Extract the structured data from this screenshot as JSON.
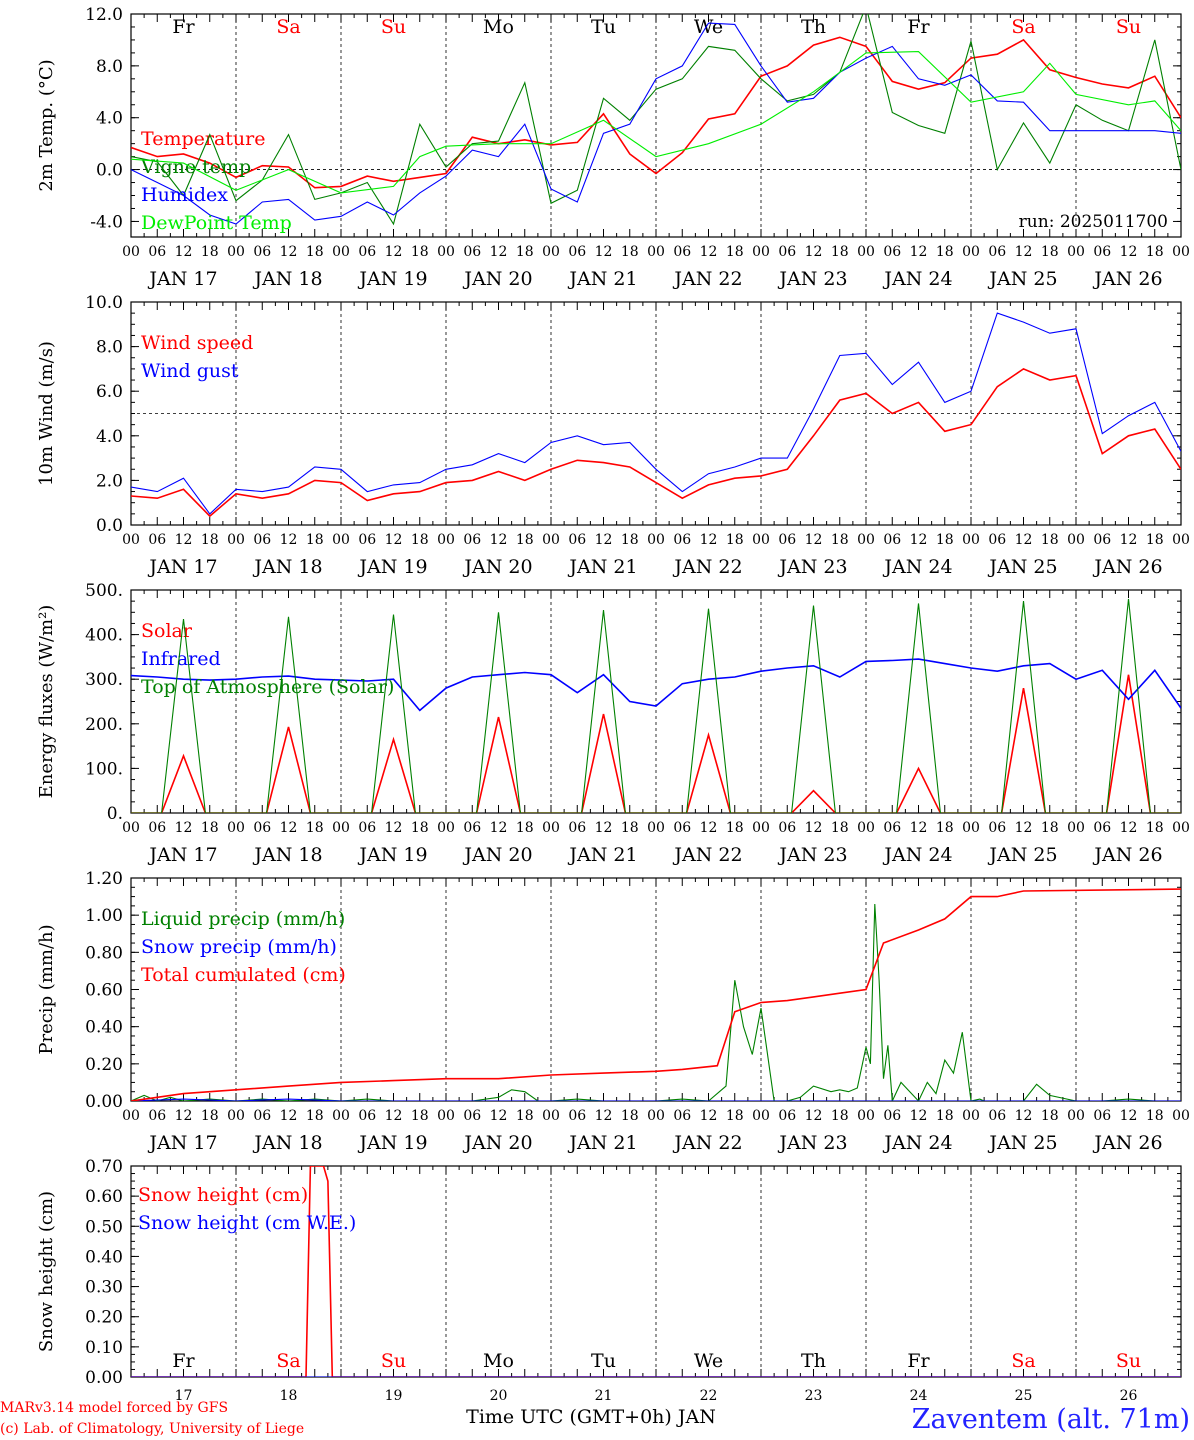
{
  "run_label": "run: 2025011700",
  "footer": {
    "model": "MARv3.14 model forced by GFS",
    "credit": "(c) Lab. of Climatology, University of Liege",
    "xlabel": "Time UTC (GMT+0h) JAN",
    "station": "Zaventem (alt. 71m)"
  },
  "colors": {
    "red": "#ff0000",
    "blue": "#0000ff",
    "green": "#008000",
    "lime": "#00ee00"
  },
  "hour_ticks": [
    "00",
    "06",
    "12",
    "18"
  ],
  "final_tick": "00",
  "day_labels": [
    "JAN 17",
    "JAN 18",
    "JAN 19",
    "JAN 20",
    "JAN 21",
    "JAN 22",
    "JAN 23",
    "JAN 24",
    "JAN 25",
    "JAN 26"
  ],
  "weekday_labels": [
    "Fr",
    "Sa",
    "Su",
    "Mo",
    "Tu",
    "We",
    "Th",
    "Fr",
    "Sa",
    "Su"
  ],
  "weekend_days": [
    1,
    2,
    8,
    9
  ],
  "bottom_day_numbers": [
    "17",
    "18",
    "19",
    "20",
    "21",
    "22",
    "23",
    "24",
    "25",
    "26"
  ],
  "chart_data": [
    {
      "type": "line",
      "ylabel": "2m Temp. (°C)",
      "ylim": [
        -5.2,
        12
      ],
      "yticks": [
        "-4.0",
        "0.0",
        "4.0",
        "8.0",
        "12.0"
      ],
      "ytick_values": [
        -4,
        0,
        4,
        8,
        12
      ],
      "ref_line": 0,
      "x_unit": "hours since JAN 17 00 UTC",
      "xlim": [
        0,
        240
      ],
      "legend_position": "top-left",
      "series": [
        {
          "name": "Temperature",
          "color": "red",
          "x": [
            0,
            6,
            12,
            18,
            24,
            30,
            36,
            42,
            48,
            54,
            60,
            66,
            72,
            78,
            84,
            90,
            96,
            102,
            108,
            114,
            120,
            126,
            132,
            138,
            144,
            150,
            156,
            162,
            168,
            174,
            180,
            186,
            192,
            198,
            204,
            210,
            216,
            222,
            228,
            234,
            240
          ],
          "y": [
            1.7,
            1.0,
            1.2,
            0.5,
            -0.6,
            0.3,
            0.2,
            -1.4,
            -1.3,
            -0.5,
            -0.9,
            -0.6,
            -0.3,
            2.5,
            2.0,
            2.3,
            1.9,
            2.1,
            4.3,
            1.2,
            -0.3,
            1.3,
            3.9,
            4.3,
            7.2,
            8.0,
            9.6,
            10.2,
            9.5,
            6.8,
            6.2,
            6.7,
            8.6,
            8.9,
            10.0,
            7.7,
            7.1,
            6.6,
            6.3,
            7.2,
            4.0
          ]
        },
        {
          "name": "Vigne temp",
          "color": "green",
          "x": [
            0,
            6,
            12,
            18,
            24,
            30,
            36,
            42,
            48,
            54,
            60,
            66,
            72,
            78,
            84,
            90,
            96,
            102,
            108,
            114,
            120,
            126,
            132,
            138,
            144,
            150,
            156,
            162,
            168,
            174,
            180,
            186,
            192,
            198,
            204,
            210,
            216,
            222,
            228,
            234,
            240
          ],
          "y": [
            1.0,
            0.6,
            -2.0,
            2.7,
            -2.4,
            -0.8,
            2.7,
            -2.3,
            -1.8,
            -1.0,
            -4.2,
            3.5,
            0.2,
            2.0,
            2.2,
            6.7,
            -2.6,
            -1.6,
            5.5,
            3.8,
            6.2,
            7.0,
            9.5,
            9.2,
            7.0,
            5.3,
            5.8,
            7.5,
            12.6,
            4.4,
            3.4,
            2.8,
            9.9,
            0.0,
            3.6,
            0.5,
            5.0,
            3.8,
            3.0,
            10.0,
            0.0
          ]
        },
        {
          "name": "Humidex",
          "color": "blue",
          "x": [
            0,
            6,
            12,
            18,
            24,
            30,
            36,
            42,
            48,
            54,
            60,
            66,
            72,
            78,
            84,
            90,
            96,
            102,
            108,
            114,
            120,
            126,
            132,
            138,
            144,
            150,
            156,
            162,
            168,
            174,
            180,
            186,
            192,
            198,
            204,
            210,
            216,
            222,
            228,
            234,
            240
          ],
          "y": [
            0.0,
            -1.0,
            -2.0,
            -3.5,
            -4.2,
            -2.5,
            -2.3,
            -3.9,
            -3.6,
            -2.5,
            -3.5,
            -1.8,
            -0.5,
            1.5,
            1.0,
            3.5,
            -1.5,
            -2.5,
            2.8,
            3.5,
            7.0,
            8.0,
            11.3,
            11.2,
            8.0,
            5.2,
            5.5,
            7.5,
            8.6,
            9.5,
            7.0,
            6.5,
            7.3,
            5.3,
            5.2,
            3.0,
            3.0,
            3.0,
            3.0,
            3.0,
            2.8
          ]
        },
        {
          "name": "DewPoint Temp",
          "color": "lime",
          "x": [
            0,
            12,
            24,
            36,
            48,
            60,
            66,
            72,
            84,
            96,
            108,
            120,
            132,
            144,
            156,
            168,
            180,
            192,
            204,
            210,
            216,
            228,
            234,
            240
          ],
          "y": [
            0.8,
            0.5,
            -1.6,
            0.0,
            -1.8,
            -1.3,
            1.0,
            1.8,
            2.0,
            2.0,
            3.8,
            1.0,
            2.0,
            3.5,
            6.0,
            9.0,
            9.1,
            5.2,
            6.0,
            8.2,
            5.8,
            5.0,
            5.3,
            3.0
          ]
        }
      ]
    },
    {
      "type": "line",
      "ylabel": "10m Wind (m/s)",
      "ylim": [
        0,
        10
      ],
      "yticks": [
        "0.0",
        "2.0",
        "4.0",
        "6.0",
        "8.0",
        "10.0"
      ],
      "ytick_values": [
        0,
        2,
        4,
        6,
        8,
        10
      ],
      "ref_line": 5,
      "x_unit": "hours since JAN 17 00 UTC",
      "xlim": [
        0,
        240
      ],
      "legend_position": "top-left",
      "series": [
        {
          "name": "Wind speed",
          "color": "red",
          "x": [
            0,
            6,
            12,
            18,
            24,
            30,
            36,
            42,
            48,
            54,
            60,
            66,
            72,
            78,
            84,
            90,
            96,
            102,
            108,
            114,
            120,
            126,
            132,
            138,
            144,
            150,
            156,
            162,
            168,
            174,
            180,
            186,
            192,
            198,
            204,
            210,
            216,
            222,
            228,
            234,
            240
          ],
          "y": [
            1.3,
            1.2,
            1.6,
            0.4,
            1.4,
            1.2,
            1.4,
            2.0,
            1.9,
            1.1,
            1.4,
            1.5,
            1.9,
            2.0,
            2.4,
            2.0,
            2.5,
            2.9,
            2.8,
            2.6,
            1.9,
            1.2,
            1.8,
            2.1,
            2.2,
            2.5,
            4.0,
            5.6,
            5.9,
            5.0,
            5.5,
            4.2,
            4.5,
            6.2,
            7.0,
            6.5,
            6.7,
            3.2,
            4.0,
            4.3,
            2.5
          ]
        },
        {
          "name": "Wind gust",
          "color": "blue",
          "x": [
            0,
            6,
            12,
            18,
            24,
            30,
            36,
            42,
            48,
            54,
            60,
            66,
            72,
            78,
            84,
            90,
            96,
            102,
            108,
            114,
            120,
            126,
            132,
            138,
            144,
            150,
            156,
            162,
            168,
            174,
            180,
            186,
            192,
            198,
            204,
            210,
            216,
            222,
            228,
            234,
            240
          ],
          "y": [
            1.7,
            1.5,
            2.1,
            0.5,
            1.6,
            1.5,
            1.7,
            2.6,
            2.5,
            1.5,
            1.8,
            1.9,
            2.5,
            2.7,
            3.2,
            2.8,
            3.7,
            4.0,
            3.6,
            3.7,
            2.5,
            1.5,
            2.3,
            2.6,
            3.0,
            3.0,
            5.2,
            7.6,
            7.7,
            6.3,
            7.3,
            5.5,
            6.0,
            9.5,
            9.1,
            8.6,
            8.8,
            4.1,
            4.9,
            5.5,
            3.3
          ]
        }
      ]
    },
    {
      "type": "line",
      "ylabel": "Energy fluxes (W/m²)",
      "ylim": [
        0,
        500
      ],
      "yticks": [
        "0.",
        "100.",
        "200.",
        "300.",
        "400.",
        "500."
      ],
      "ytick_values": [
        0,
        100,
        200,
        300,
        400,
        500
      ],
      "x_unit": "hours since JAN 17 00 UTC",
      "xlim": [
        0,
        240
      ],
      "legend_position": "top-left",
      "series": [
        {
          "name": "Solar",
          "color": "red",
          "peaks_x": [
            12,
            36,
            60,
            84,
            108,
            132,
            156,
            180,
            204,
            228
          ],
          "peaks_y": [
            128,
            193,
            165,
            215,
            222,
            175,
            50,
            100,
            280,
            310
          ]
        },
        {
          "name": "Infrared",
          "color": "blue",
          "x": [
            0,
            6,
            12,
            18,
            24,
            30,
            36,
            42,
            48,
            54,
            60,
            66,
            72,
            78,
            84,
            90,
            96,
            102,
            108,
            114,
            120,
            126,
            132,
            138,
            144,
            150,
            156,
            162,
            168,
            174,
            180,
            186,
            192,
            198,
            204,
            210,
            216,
            222,
            228,
            234,
            240
          ],
          "y": [
            308,
            305,
            300,
            298,
            300,
            305,
            307,
            300,
            298,
            296,
            300,
            230,
            280,
            305,
            310,
            315,
            310,
            270,
            310,
            250,
            240,
            290,
            300,
            305,
            318,
            325,
            330,
            305,
            340,
            342,
            345,
            335,
            325,
            318,
            330,
            335,
            300,
            320,
            255,
            320,
            235
          ]
        },
        {
          "name": "Top of Atmosphere (Solar)",
          "color": "green",
          "peaks_x": [
            12,
            36,
            60,
            84,
            108,
            132,
            156,
            180,
            204,
            228
          ],
          "peaks_y": [
            435,
            440,
            445,
            450,
            455,
            458,
            465,
            470,
            475,
            480
          ]
        }
      ]
    },
    {
      "type": "line",
      "ylabel": "Precip (mm/h)",
      "ylim": [
        0,
        1.2
      ],
      "yticks": [
        "0.00",
        "0.20",
        "0.40",
        "0.60",
        "0.80",
        "1.00",
        "1.20"
      ],
      "ytick_values": [
        0,
        0.2,
        0.4,
        0.6,
        0.8,
        1.0,
        1.2
      ],
      "x_unit": "hours since JAN 17 00 UTC",
      "xlim": [
        0,
        240
      ],
      "legend_position": "top-left",
      "series": [
        {
          "name": "Liquid precip (mm/h)",
          "color": "green",
          "x": [
            0,
            3,
            6,
            9,
            12,
            18,
            24,
            30,
            36,
            42,
            48,
            54,
            60,
            66,
            72,
            78,
            84,
            87,
            90,
            93,
            96,
            102,
            108,
            114,
            120,
            126,
            132,
            136,
            138,
            140,
            142,
            144,
            147,
            150,
            153,
            156,
            160,
            162,
            164,
            166,
            168,
            169,
            170,
            171,
            172,
            173,
            174,
            176,
            178,
            180,
            182,
            184,
            186,
            188,
            190,
            192,
            194,
            195,
            196,
            198,
            204,
            207,
            210,
            216,
            222,
            228,
            234,
            240
          ],
          "y": [
            0.0,
            0.03,
            0.0,
            0.02,
            0.0,
            0.01,
            0.0,
            0.01,
            0.0,
            0.01,
            0.0,
            0.01,
            0.0,
            0.0,
            0.0,
            0.0,
            0.02,
            0.06,
            0.05,
            0.0,
            0.0,
            0.01,
            0.0,
            0.0,
            0.0,
            0.01,
            0.0,
            0.08,
            0.65,
            0.4,
            0.25,
            0.5,
            0.0,
            0.0,
            0.02,
            0.08,
            0.05,
            0.06,
            0.05,
            0.07,
            0.29,
            0.2,
            1.06,
            0.65,
            0.12,
            0.3,
            0.0,
            0.1,
            0.05,
            0.0,
            0.1,
            0.04,
            0.22,
            0.15,
            0.37,
            0.0,
            0.01,
            0.0,
            0.0,
            0.0,
            0.0,
            0.09,
            0.03,
            0.0,
            0.0,
            0.01,
            0.0,
            0.0
          ]
        },
        {
          "name": "Snow precip (mm/h)",
          "color": "blue",
          "x": [
            0,
            12,
            24,
            36,
            48,
            240
          ],
          "y": [
            0.0,
            0.01,
            0.0,
            0.01,
            0.0,
            0.0
          ]
        },
        {
          "name": "Total cumulated (cm)",
          "color": "red",
          "x": [
            0,
            6,
            12,
            24,
            36,
            48,
            60,
            72,
            84,
            96,
            108,
            120,
            126,
            134,
            138,
            144,
            150,
            156,
            162,
            168,
            172,
            180,
            186,
            192,
            198,
            204,
            240
          ],
          "y": [
            0.0,
            0.02,
            0.04,
            0.06,
            0.08,
            0.1,
            0.11,
            0.12,
            0.12,
            0.14,
            0.15,
            0.16,
            0.17,
            0.19,
            0.48,
            0.53,
            0.54,
            0.56,
            0.58,
            0.6,
            0.85,
            0.92,
            0.98,
            1.1,
            1.1,
            1.13,
            1.14
          ]
        }
      ]
    },
    {
      "type": "line",
      "ylabel": "Snow height (cm)",
      "ylim": [
        0,
        0.7
      ],
      "yticks": [
        "0.00",
        "0.10",
        "0.20",
        "0.30",
        "0.40",
        "0.50",
        "0.60",
        "0.70"
      ],
      "ytick_values": [
        0,
        0.1,
        0.2,
        0.3,
        0.4,
        0.5,
        0.6,
        0.7
      ],
      "x_unit": "hours since JAN 17 00 UTC",
      "xlim": [
        0,
        240
      ],
      "legend_position": "top-left",
      "series": [
        {
          "name": "Snow height (cm)",
          "color": "red",
          "x": [
            0,
            40,
            41,
            42,
            43,
            44,
            45,
            46,
            240
          ],
          "y": [
            0,
            0,
            0.7,
            0.7,
            0.7,
            0.7,
            0.65,
            0,
            0
          ]
        },
        {
          "name": "Snow height (cm W.E.)",
          "color": "blue",
          "x": [
            0,
            240
          ],
          "y": [
            0,
            0
          ]
        }
      ]
    }
  ]
}
